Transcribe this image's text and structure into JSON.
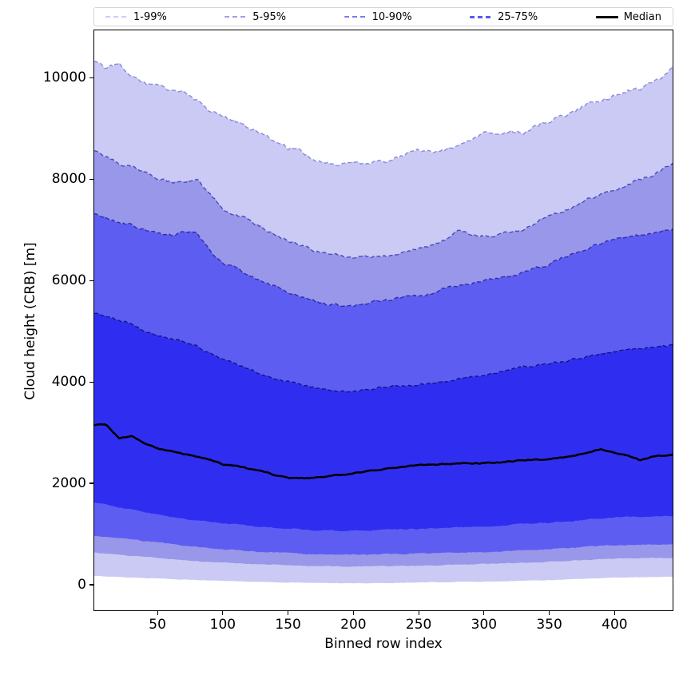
{
  "figure": {
    "background": "#ffffff"
  },
  "legend": {
    "items": [
      {
        "label": "1-99%",
        "color": "#ccccf7",
        "style": "dashed",
        "lw": 1.5
      },
      {
        "label": "5-95%",
        "color": "#9e9eef",
        "style": "dashed",
        "lw": 1.5
      },
      {
        "label": "10-90%",
        "color": "#7c7cf2",
        "style": "dashed",
        "lw": 2
      },
      {
        "label": "25-75%",
        "color": "#5b5be8",
        "style": "dashed",
        "lw": 3
      },
      {
        "label": "Median",
        "color": "#000000",
        "style": "solid",
        "lw": 3
      }
    ]
  },
  "chart_data": {
    "type": "area",
    "title": "",
    "xlabel": "Binned row index",
    "ylabel": "Cloud height (CRB) [m]",
    "xlim": [
      1,
      445
    ],
    "ylim": [
      -520,
      10950
    ],
    "xticks": [
      50,
      100,
      150,
      200,
      250,
      300,
      350,
      400
    ],
    "yticks": [
      0,
      2000,
      4000,
      6000,
      8000,
      10000
    ],
    "grid": false,
    "legend_position": "top-expanded",
    "x": [
      1,
      10,
      20,
      30,
      40,
      50,
      60,
      70,
      80,
      90,
      100,
      110,
      120,
      130,
      140,
      150,
      160,
      170,
      180,
      190,
      200,
      210,
      220,
      230,
      240,
      250,
      260,
      270,
      280,
      290,
      300,
      310,
      320,
      330,
      340,
      350,
      360,
      370,
      380,
      390,
      400,
      410,
      420,
      430,
      440,
      445
    ],
    "series": [
      {
        "name": "p1",
        "values": [
          160,
          150,
          140,
          128,
          118,
          108,
          98,
          88,
          78,
          70,
          63,
          55,
          48,
          42,
          36,
          30,
          26,
          22,
          18,
          16,
          15,
          16,
          18,
          21,
          25,
          30,
          34,
          38,
          42,
          45,
          47,
          52,
          58,
          64,
          71,
          79,
          88,
          97,
          107,
          116,
          126,
          130,
          134,
          138,
          142,
          143
        ],
        "noise": 8
      },
      {
        "name": "p5",
        "values": [
          620,
          600,
          578,
          558,
          538,
          518,
          498,
          474,
          452,
          436,
          424,
          410,
          400,
          390,
          384,
          378,
          368,
          358,
          350,
          347,
          345,
          348,
          352,
          356,
          360,
          362,
          368,
          376,
          382,
          388,
          395,
          403,
          412,
          422,
          430,
          440,
          452,
          465,
          478,
          490,
          505,
          508,
          512,
          515,
          519,
          520
        ],
        "noise": 14
      },
      {
        "name": "p10",
        "values": [
          950,
          930,
          902,
          878,
          850,
          820,
          790,
          760,
          732,
          710,
          690,
          670,
          650,
          636,
          625,
          614,
          600,
          590,
          585,
          580,
          580,
          585,
          590,
          595,
          598,
          600,
          608,
          614,
          620,
          625,
          632,
          640,
          652,
          665,
          678,
          690,
          705,
          720,
          740,
          755,
          768,
          774,
          780,
          785,
          790,
          792
        ],
        "noise": 18
      },
      {
        "name": "p25",
        "values": [
          1610,
          1565,
          1505,
          1478,
          1420,
          1372,
          1330,
          1290,
          1252,
          1230,
          1208,
          1180,
          1152,
          1130,
          1112,
          1098,
          1080,
          1068,
          1060,
          1055,
          1053,
          1058,
          1068,
          1078,
          1085,
          1088,
          1098,
          1108,
          1118,
          1128,
          1136,
          1150,
          1168,
          1188,
          1200,
          1212,
          1230,
          1252,
          1278,
          1300,
          1318,
          1328,
          1330,
          1334,
          1338,
          1340
        ],
        "noise": 22
      },
      {
        "name": "median",
        "values": [
          3150,
          3145,
          2880,
          2920,
          2780,
          2680,
          2625,
          2570,
          2520,
          2455,
          2360,
          2330,
          2280,
          2230,
          2150,
          2105,
          2090,
          2100,
          2125,
          2155,
          2190,
          2230,
          2255,
          2300,
          2330,
          2350,
          2360,
          2368,
          2378,
          2388,
          2390,
          2400,
          2420,
          2448,
          2460,
          2472,
          2500,
          2540,
          2610,
          2665,
          2600,
          2545,
          2450,
          2520,
          2545,
          2560
        ],
        "noise": 18
      },
      {
        "name": "p75",
        "values": [
          5360,
          5300,
          5210,
          5150,
          5010,
          4910,
          4850,
          4795,
          4700,
          4560,
          4440,
          4350,
          4250,
          4150,
          4050,
          4000,
          3945,
          3880,
          3835,
          3820,
          3810,
          3850,
          3895,
          3920,
          3930,
          3940,
          3980,
          4005,
          4050,
          4095,
          4130,
          4180,
          4245,
          4300,
          4320,
          4360,
          4400,
          4450,
          4500,
          4550,
          4600,
          4625,
          4650,
          4680,
          4705,
          4725
        ],
        "noise": 38
      },
      {
        "name": "p90",
        "values": [
          7330,
          7255,
          7150,
          7098,
          7000,
          6930,
          6900,
          6975,
          6945,
          6600,
          6330,
          6250,
          6100,
          6000,
          5895,
          5780,
          5700,
          5600,
          5525,
          5510,
          5505,
          5548,
          5600,
          5620,
          5695,
          5700,
          5748,
          5848,
          5900,
          5950,
          6020,
          6050,
          6100,
          6150,
          6250,
          6330,
          6450,
          6548,
          6650,
          6748,
          6800,
          6850,
          6900,
          6950,
          7000,
          7010
        ],
        "noise": 48
      },
      {
        "name": "p95",
        "values": [
          8560,
          8450,
          8305,
          8280,
          8150,
          8030,
          7950,
          7955,
          8020,
          7700,
          7430,
          7300,
          7200,
          7050,
          6900,
          6800,
          6700,
          6600,
          6520,
          6495,
          6470,
          6460,
          6462,
          6500,
          6600,
          6650,
          6700,
          6800,
          6995,
          6900,
          6880,
          6900,
          6950,
          7000,
          7148,
          7280,
          7350,
          7500,
          7600,
          7700,
          7750,
          7900,
          8000,
          8100,
          8245,
          8300
        ],
        "noise": 55
      },
      {
        "name": "p99",
        "values": [
          10350,
          10200,
          10280,
          10050,
          9900,
          9880,
          9750,
          9700,
          9550,
          9350,
          9240,
          9150,
          9000,
          8900,
          8750,
          8615,
          8550,
          8400,
          8350,
          8300,
          8320,
          8300,
          8350,
          8400,
          8500,
          8600,
          8550,
          8600,
          8650,
          8800,
          8930,
          8850,
          8950,
          8930,
          9050,
          9150,
          9250,
          9350,
          9500,
          9550,
          9640,
          9750,
          9800,
          9900,
          10100,
          10300
        ],
        "noise": 70
      }
    ],
    "bands": [
      {
        "label": "1-99%",
        "lower": "p1",
        "upper": "p99",
        "fill": "#cacaf4",
        "edge": "#8a8ad8"
      },
      {
        "label": "5-95%",
        "lower": "p5",
        "upper": "p95",
        "fill": "#9897e9",
        "edge": "#4a4ac0"
      },
      {
        "label": "10-90%",
        "lower": "p10",
        "upper": "p90",
        "fill": "#5e5df2",
        "edge": "#2d2da8"
      },
      {
        "label": "25-75%",
        "lower": "p25",
        "upper": "p75",
        "fill": "#2f2ef0",
        "edge": "#141480"
      }
    ],
    "median_style": {
      "label": "Median",
      "color": "#000000",
      "width": 2.6
    }
  }
}
